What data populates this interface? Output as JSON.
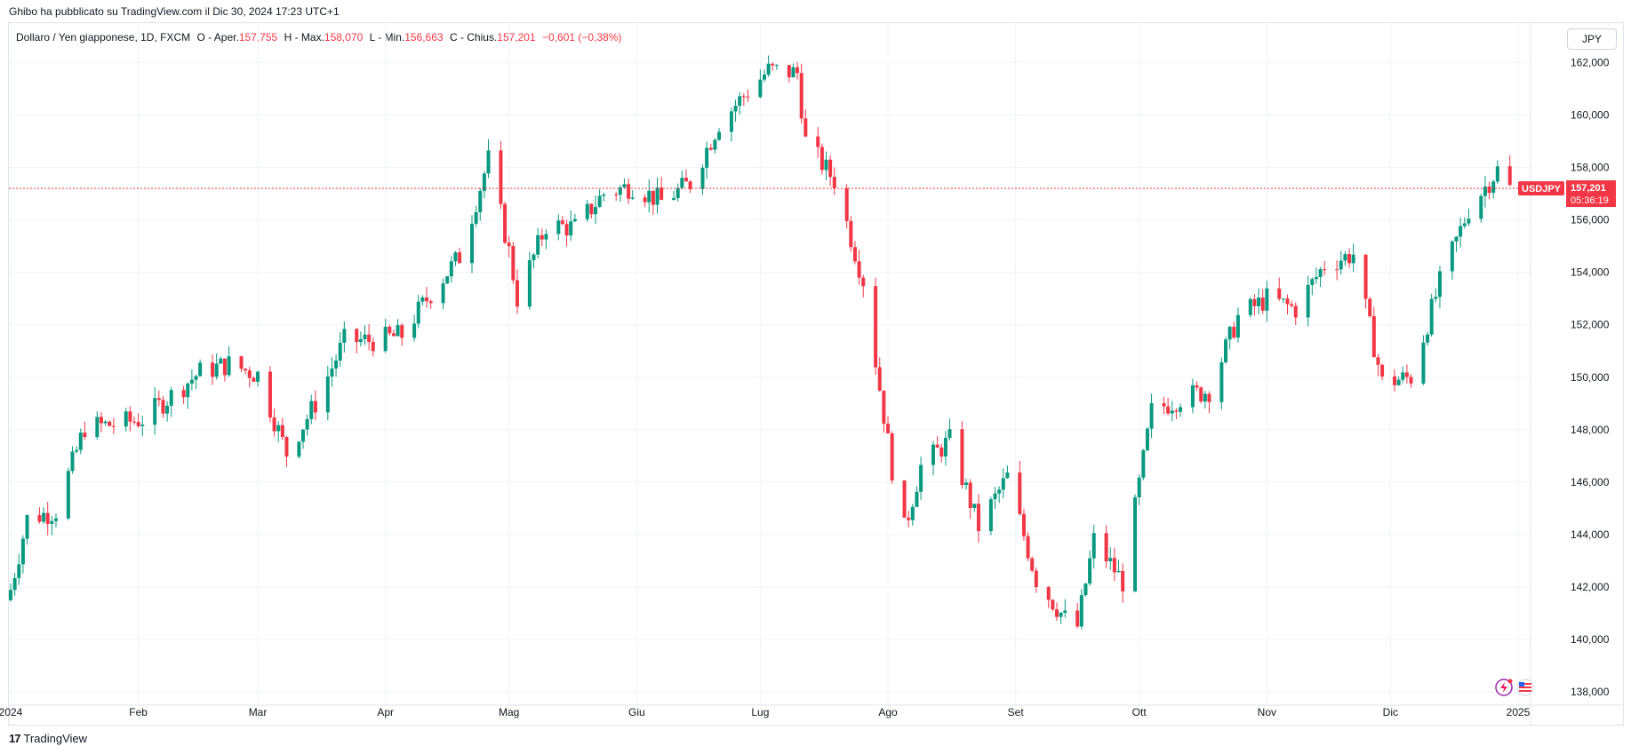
{
  "published": "Ghibo ha pubblicato su TradingView.com il Dic 30, 2024 17:23 UTC+1",
  "legend": {
    "symbol": "Dollaro / Yen giapponese, 1D, FXCM",
    "o_label": "O - Aper.",
    "o_value": "157,755",
    "h_label": "H - Max.",
    "h_value": "158,070",
    "l_label": "L - Min.",
    "l_value": "156,663",
    "c_label": "C - Chius.",
    "c_value": "157,201",
    "change": "−0,601 (−0,38%)"
  },
  "currency_button": "JPY",
  "footer_logo": "TradingView",
  "logo_mark": "17",
  "colors": {
    "up": "#089981",
    "down": "#f23645",
    "grid": "#f0f3fa",
    "text": "#131722"
  },
  "icons": [
    "lightning-icon",
    "us-flag-icon"
  ],
  "chart_data": {
    "type": "candlestick",
    "symbol": "USDJPY",
    "last_price": 157.201,
    "last_price_label": "157,201",
    "countdown": "05:36:19",
    "ylim": [
      137.5,
      163.5
    ],
    "y_ticks": [
      {
        "value": 138,
        "label": "138,000"
      },
      {
        "value": 140,
        "label": "140,000"
      },
      {
        "value": 142,
        "label": "142,000"
      },
      {
        "value": 144,
        "label": "144,000"
      },
      {
        "value": 146,
        "label": "146,000"
      },
      {
        "value": 148,
        "label": "148,000"
      },
      {
        "value": 150,
        "label": "150,000"
      },
      {
        "value": 152,
        "label": "152,000"
      },
      {
        "value": 154,
        "label": "154,000"
      },
      {
        "value": 156,
        "label": "156,000"
      },
      {
        "value": 158,
        "label": "158,000"
      },
      {
        "value": 160,
        "label": "160,000"
      },
      {
        "value": 162,
        "label": "162,000"
      }
    ],
    "x_ticks": [
      {
        "date": "2024-01-01",
        "label": "2024"
      },
      {
        "date": "2024-02-01",
        "label": "Feb"
      },
      {
        "date": "2024-03-01",
        "label": "Mar"
      },
      {
        "date": "2024-04-01",
        "label": "Apr"
      },
      {
        "date": "2024-05-01",
        "label": "Mag"
      },
      {
        "date": "2024-06-01",
        "label": "Giu"
      },
      {
        "date": "2024-07-01",
        "label": "Lug"
      },
      {
        "date": "2024-08-01",
        "label": "Ago"
      },
      {
        "date": "2024-09-01",
        "label": "Set"
      },
      {
        "date": "2024-10-01",
        "label": "Ott"
      },
      {
        "date": "2024-11-01",
        "label": "Nov"
      },
      {
        "date": "2024-12-01",
        "label": "Dic"
      },
      {
        "date": "2025-01-01",
        "label": "2025"
      }
    ],
    "x_range": [
      "2024-01-01",
      "2025-01-01"
    ],
    "closes_by_week": [
      {
        "date": "2024-01-01",
        "close": 141.9
      },
      {
        "date": "2024-01-05",
        "close": 144.6
      },
      {
        "date": "2024-01-12",
        "close": 144.9
      },
      {
        "date": "2024-01-19",
        "close": 148.1
      },
      {
        "date": "2024-01-26",
        "close": 148.2
      },
      {
        "date": "2024-02-02",
        "close": 148.4
      },
      {
        "date": "2024-02-09",
        "close": 149.3
      },
      {
        "date": "2024-02-16",
        "close": 150.2
      },
      {
        "date": "2024-02-23",
        "close": 150.5
      },
      {
        "date": "2024-03-01",
        "close": 150.1
      },
      {
        "date": "2024-03-08",
        "close": 147.1
      },
      {
        "date": "2024-03-15",
        "close": 149.0
      },
      {
        "date": "2024-03-22",
        "close": 151.4
      },
      {
        "date": "2024-03-29",
        "close": 151.4
      },
      {
        "date": "2024-04-05",
        "close": 151.6
      },
      {
        "date": "2024-04-12",
        "close": 153.2
      },
      {
        "date": "2024-04-19",
        "close": 154.6
      },
      {
        "date": "2024-04-26",
        "close": 158.3
      },
      {
        "date": "2024-05-01",
        "close": 154.8
      },
      {
        "date": "2024-05-03",
        "close": 153.0
      },
      {
        "date": "2024-05-10",
        "close": 155.8
      },
      {
        "date": "2024-05-17",
        "close": 155.7
      },
      {
        "date": "2024-05-24",
        "close": 157.0
      },
      {
        "date": "2024-05-31",
        "close": 157.3
      },
      {
        "date": "2024-06-07",
        "close": 156.7
      },
      {
        "date": "2024-06-14",
        "close": 157.4
      },
      {
        "date": "2024-06-21",
        "close": 159.7
      },
      {
        "date": "2024-06-28",
        "close": 160.9
      },
      {
        "date": "2024-07-03",
        "close": 161.7
      },
      {
        "date": "2024-07-10",
        "close": 161.6
      },
      {
        "date": "2024-07-12",
        "close": 159.0
      },
      {
        "date": "2024-07-19",
        "close": 157.5
      },
      {
        "date": "2024-07-26",
        "close": 153.7
      },
      {
        "date": "2024-08-02",
        "close": 146.5
      },
      {
        "date": "2024-08-05",
        "close": 144.2
      },
      {
        "date": "2024-08-09",
        "close": 146.6
      },
      {
        "date": "2024-08-16",
        "close": 147.6
      },
      {
        "date": "2024-08-23",
        "close": 144.3
      },
      {
        "date": "2024-08-30",
        "close": 146.2
      },
      {
        "date": "2024-09-06",
        "close": 142.3
      },
      {
        "date": "2024-09-13",
        "close": 140.8
      },
      {
        "date": "2024-09-16",
        "close": 140.5
      },
      {
        "date": "2024-09-20",
        "close": 143.8
      },
      {
        "date": "2024-09-27",
        "close": 142.2
      },
      {
        "date": "2024-10-04",
        "close": 148.7
      },
      {
        "date": "2024-10-11",
        "close": 149.2
      },
      {
        "date": "2024-10-18",
        "close": 149.5
      },
      {
        "date": "2024-10-25",
        "close": 152.3
      },
      {
        "date": "2024-11-01",
        "close": 153.0
      },
      {
        "date": "2024-11-08",
        "close": 152.6
      },
      {
        "date": "2024-11-15",
        "close": 154.3
      },
      {
        "date": "2024-11-22",
        "close": 154.7
      },
      {
        "date": "2024-11-29",
        "close": 149.8
      },
      {
        "date": "2024-12-06",
        "close": 150.0
      },
      {
        "date": "2024-12-13",
        "close": 153.6
      },
      {
        "date": "2024-12-20",
        "close": 156.4
      },
      {
        "date": "2024-12-27",
        "close": 157.9
      },
      {
        "date": "2024-12-30",
        "close": 157.2
      }
    ]
  }
}
